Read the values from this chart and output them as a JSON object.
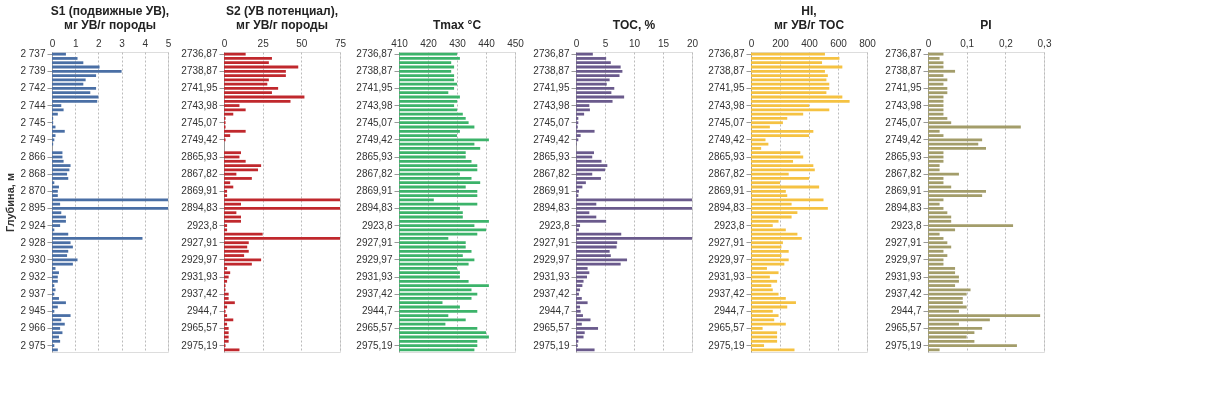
{
  "chart_data": [
    {
      "type": "bar",
      "orientation": "horizontal",
      "title": "S1 (подвижные УВ),\nмг УВ/г породы",
      "ylabel": "Глубина, м",
      "grid": "x",
      "color": "#4a6fa5",
      "xlim": [
        0,
        5
      ],
      "xticks": [
        0,
        1,
        2,
        3,
        4,
        5
      ],
      "categories": [
        "2 737",
        null,
        null,
        null,
        "2 739",
        null,
        null,
        null,
        "2 742",
        null,
        null,
        null,
        "2 744",
        null,
        null,
        null,
        "2 745",
        null,
        null,
        null,
        "2 749",
        null,
        null,
        null,
        "2 866",
        null,
        null,
        null,
        "2 868",
        null,
        null,
        null,
        "2 870",
        null,
        null,
        null,
        "2 895",
        null,
        null,
        null,
        "2 924",
        null,
        null,
        null,
        "2 928",
        null,
        null,
        null,
        "2 930",
        null,
        null,
        null,
        "2 932",
        null,
        null,
        null,
        "2 937",
        null,
        null,
        null,
        "2 945",
        null,
        null,
        null,
        "2 966",
        null,
        null,
        null,
        "2 975",
        null
      ],
      "values": [
        0.6,
        1.1,
        1.35,
        2.05,
        3.0,
        1.9,
        1.45,
        1.35,
        1.9,
        1.65,
        2.0,
        1.95,
        0.4,
        0.5,
        0.25,
        0.05,
        0.05,
        0.15,
        0.55,
        0.15,
        0.1,
        0.05,
        0,
        0.45,
        0.45,
        0.5,
        0.8,
        0.75,
        0.65,
        0.7,
        0.1,
        0.3,
        0.25,
        0.25,
        5,
        0.35,
        5,
        0.4,
        0.6,
        0.6,
        0.35,
        0.1,
        0.7,
        3.9,
        0.8,
        0.9,
        0.7,
        0.65,
        1.1,
        0.9,
        0.15,
        0.3,
        0.25,
        0.25,
        0.1,
        0.15,
        0.1,
        0.3,
        0.6,
        0.25,
        0.1,
        0.8,
        0.4,
        0.55,
        0.35,
        0.45,
        0.3,
        0.35,
        0.1,
        0.25
      ]
    },
    {
      "type": "bar",
      "orientation": "horizontal",
      "title": "S2 (УВ потенциал),\nмг УВ/г породы",
      "grid": "x",
      "color": "#c0282d",
      "xlim": [
        0,
        75
      ],
      "xticks": [
        0,
        25,
        50,
        75
      ],
      "categories": [
        "2736,87",
        null,
        null,
        null,
        "2738,87",
        null,
        null,
        null,
        "2741,95",
        null,
        null,
        null,
        "2743,98",
        null,
        null,
        null,
        "2745,07",
        null,
        null,
        null,
        "2749,42",
        null,
        null,
        null,
        "2865,93",
        null,
        null,
        null,
        "2867,82",
        null,
        null,
        null,
        "2869,91",
        null,
        null,
        null,
        "2894,83",
        null,
        null,
        null,
        "2923,8",
        null,
        null,
        null,
        "2927,91",
        null,
        null,
        null,
        "2929,97",
        null,
        null,
        null,
        "2931,93",
        null,
        null,
        null,
        "2937,42",
        null,
        null,
        null,
        "2944,7",
        null,
        null,
        null,
        "2965,57",
        null,
        null,
        null,
        "2975,19",
        null
      ],
      "values": [
        14,
        31,
        29,
        48,
        40,
        40,
        29,
        28,
        35,
        31,
        52,
        43,
        10,
        14,
        6,
        1,
        1,
        1,
        14,
        4,
        1,
        0,
        0,
        11,
        10,
        14,
        24,
        22,
        8,
        18,
        4,
        6,
        2,
        2,
        75,
        11,
        75,
        8,
        11,
        11,
        2,
        2,
        25,
        75,
        16,
        15,
        16,
        13,
        24,
        18,
        2,
        4,
        3,
        2,
        1,
        1,
        3,
        3,
        7,
        2,
        1,
        2,
        6,
        2,
        3,
        3,
        3,
        3,
        1,
        10
      ]
    },
    {
      "type": "bar",
      "orientation": "horizontal",
      "title": "Tmax °C",
      "grid": "x",
      "color": "#3cb36a",
      "xlim": [
        410,
        450
      ],
      "xticks": [
        410,
        420,
        430,
        440,
        450
      ],
      "categories": [
        "2736,87",
        null,
        null,
        null,
        "2738,87",
        null,
        null,
        null,
        "2741,95",
        null,
        null,
        null,
        "2743,98",
        null,
        null,
        null,
        "2745,07",
        null,
        null,
        null,
        "2749,42",
        null,
        null,
        null,
        "2865,93",
        null,
        null,
        null,
        "2867,82",
        null,
        null,
        null,
        "2869,91",
        null,
        null,
        null,
        "2894,83",
        null,
        null,
        null,
        "2923,8",
        null,
        null,
        null,
        "2927,91",
        null,
        null,
        null,
        "2929,97",
        null,
        null,
        null,
        "2931,93",
        null,
        null,
        null,
        "2937,42",
        null,
        null,
        null,
        "2944,7",
        null,
        null,
        null,
        "2965,57",
        null,
        null,
        null,
        "2975,19",
        null
      ],
      "values": [
        430,
        431,
        428,
        429,
        428,
        429,
        429,
        430,
        429,
        427,
        431,
        430,
        429,
        430,
        432,
        433,
        434,
        436,
        431,
        430,
        441,
        436,
        438,
        433,
        433,
        435,
        437,
        437,
        431,
        435,
        438,
        433,
        437,
        437,
        422,
        437,
        431,
        432,
        432,
        441,
        436,
        440,
        437,
        427,
        433,
        433,
        435,
        432,
        436,
        434,
        430,
        431,
        431,
        434,
        441,
        435,
        437,
        435,
        425,
        431,
        437,
        427,
        433,
        426,
        437,
        440,
        441,
        437,
        437,
        436
      ]
    },
    {
      "type": "bar",
      "orientation": "horizontal",
      "title": "TOC, %",
      "grid": "x",
      "color": "#6a5a8c",
      "xlim": [
        0,
        20
      ],
      "xticks": [
        0,
        5,
        10,
        15,
        20
      ],
      "categories": [
        "2736,87",
        null,
        null,
        null,
        "2738,87",
        null,
        null,
        null,
        "2741,95",
        null,
        null,
        null,
        "2743,98",
        null,
        null,
        null,
        "2745,07",
        null,
        null,
        null,
        "2749,42",
        null,
        null,
        null,
        "2865,93",
        null,
        null,
        null,
        "2867,82",
        null,
        null,
        null,
        "2869,91",
        null,
        null,
        null,
        "2894,83",
        null,
        null,
        null,
        "2923,8",
        null,
        null,
        null,
        "2927,91",
        null,
        null,
        null,
        "2929,97",
        null,
        null,
        null,
        "2931,93",
        null,
        null,
        null,
        "2937,42",
        null,
        null,
        null,
        "2944,7",
        null,
        null,
        null,
        "2965,57",
        null,
        null,
        null,
        "2975,19",
        null
      ],
      "values": [
        2.9,
        5.2,
        6.0,
        7.7,
        8.0,
        7.5,
        5.8,
        5.3,
        6.6,
        6.1,
        8.3,
        6.3,
        2.3,
        2.4,
        1.4,
        0.4,
        0.4,
        0.3,
        3.2,
        0.8,
        0.4,
        0.1,
        0,
        3.1,
        2.8,
        4.4,
        5.4,
        5.0,
        2.8,
        4.3,
        1.7,
        1.1,
        0.5,
        0.4,
        20,
        3.5,
        20,
        2.3,
        3.5,
        5.2,
        0.7,
        0.5,
        7.8,
        20,
        7.1,
        7.0,
        5.8,
        6.0,
        8.8,
        7.7,
        2.0,
        2.3,
        1.9,
        1.3,
        1.1,
        0.7,
        0.5,
        1.0,
        2.0,
        0.7,
        0.8,
        1.2,
        2.5,
        1.0,
        3.8,
        1.5,
        1.3,
        0.4,
        0.3,
        3.2
      ]
    },
    {
      "type": "bar",
      "orientation": "horizontal",
      "title": "HI,\nмг УВ/г TOC",
      "grid": "x",
      "color": "#f5c242",
      "xlim": [
        0,
        800
      ],
      "xticks": [
        0,
        200,
        400,
        600,
        800
      ],
      "categories": [
        "2736,87",
        null,
        null,
        null,
        "2738,87",
        null,
        null,
        null,
        "2741,95",
        null,
        null,
        null,
        "2743,98",
        null,
        null,
        null,
        "2745,07",
        null,
        null,
        null,
        "2749,42",
        null,
        null,
        null,
        "2865,93",
        null,
        null,
        null,
        "2867,82",
        null,
        null,
        null,
        "2869,91",
        null,
        null,
        null,
        "2894,83",
        null,
        null,
        null,
        "2923,8",
        null,
        null,
        null,
        "2927,91",
        null,
        null,
        null,
        "2929,97",
        null,
        null,
        null,
        "2931,93",
        null,
        null,
        null,
        "2937,42",
        null,
        null,
        null,
        "2944,7",
        null,
        null,
        null,
        "2965,57",
        null,
        null,
        null,
        "2975,19",
        null
      ],
      "values": [
        510,
        610,
        490,
        630,
        510,
        530,
        520,
        540,
        540,
        520,
        630,
        680,
        400,
        540,
        360,
        250,
        220,
        130,
        430,
        400,
        100,
        120,
        70,
        340,
        360,
        290,
        430,
        440,
        260,
        400,
        200,
        470,
        240,
        250,
        500,
        280,
        530,
        320,
        280,
        190,
        150,
        240,
        320,
        350,
        220,
        210,
        260,
        210,
        260,
        230,
        110,
        190,
        130,
        180,
        140,
        150,
        190,
        240,
        310,
        250,
        150,
        190,
        160,
        240,
        80,
        180,
        180,
        180,
        90,
        300
      ]
    },
    {
      "type": "bar",
      "orientation": "horizontal",
      "title": "PI",
      "grid": "x",
      "color": "#a39d6a",
      "xlim": [
        0,
        0.3
      ],
      "xticks": [
        0,
        {
          "value": 0.1,
          "label": "0,1"
        },
        {
          "value": 0.2,
          "label": "0,2"
        },
        {
          "value": 0.3,
          "label": "0,3"
        }
      ],
      "categories": [
        "2736,87",
        null,
        null,
        null,
        "2738,87",
        null,
        null,
        null,
        "2741,95",
        null,
        null,
        null,
        "2743,98",
        null,
        null,
        null,
        "2745,07",
        null,
        null,
        null,
        "2749,42",
        null,
        null,
        null,
        "2865,93",
        null,
        null,
        null,
        "2867,82",
        null,
        null,
        null,
        "2869,91",
        null,
        null,
        null,
        "2894,83",
        null,
        null,
        null,
        "2923,8",
        null,
        null,
        null,
        "2927,91",
        null,
        null,
        null,
        "2929,97",
        null,
        null,
        null,
        "2931,93",
        null,
        null,
        null,
        "2937,42",
        null,
        null,
        null,
        "2944,7",
        null,
        null,
        null,
        "2965,57",
        null,
        null,
        null,
        "2975,19",
        null
      ],
      "values": [
        0.04,
        0.03,
        0.04,
        0.04,
        0.07,
        0.04,
        0.05,
        0.04,
        0.05,
        0.05,
        0.04,
        0.04,
        0.04,
        0.04,
        0.04,
        0.05,
        0.06,
        0.24,
        0.03,
        0.04,
        0.14,
        0.13,
        0.15,
        0.04,
        0.04,
        0.04,
        0.03,
        0.03,
        0.08,
        0.04,
        0.04,
        0.06,
        0.15,
        0.14,
        0.04,
        0.03,
        0.04,
        0.05,
        0.06,
        0.06,
        0.22,
        0.07,
        0.03,
        0.04,
        0.05,
        0.06,
        0.04,
        0.05,
        0.04,
        0.04,
        0.07,
        0.07,
        0.08,
        0.08,
        0.07,
        0.11,
        0.1,
        0.09,
        0.09,
        0.1,
        0.08,
        0.29,
        0.16,
        0.08,
        0.14,
        0.12,
        0.1,
        0.12,
        0.23,
        0.03
      ]
    }
  ]
}
